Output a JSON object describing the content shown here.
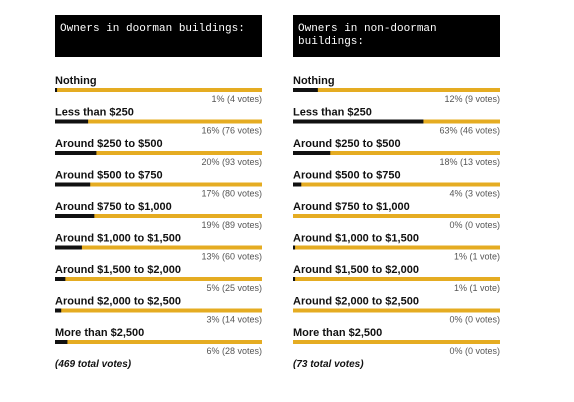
{
  "chart_data": [
    {
      "type": "bar",
      "orientation": "horizontal",
      "title": "Owners in doorman buildings:",
      "categories": [
        "Nothing",
        "Less than $250",
        "Around $250 to $500",
        "Around $500 to $750",
        "Around $750 to $1,000",
        "Around $1,000 to $1,500",
        "Around $1,500 to $2,000",
        "Around $2,000 to $2,500",
        "More than $2,500"
      ],
      "values": [
        1,
        16,
        20,
        17,
        19,
        13,
        5,
        3,
        6
      ],
      "value_labels": [
        "1% (4 votes)",
        "16% (76 votes)",
        "20% (93 votes)",
        "17% (80 votes)",
        "19% (89 votes)",
        "13% (60 votes)",
        "5% (25 votes)",
        "3% (14 votes)",
        "6% (28 votes)"
      ],
      "xlim": [
        0,
        100
      ],
      "color": "#111111",
      "track_color": "#e5ac22",
      "footnote": "(469 total votes)"
    },
    {
      "type": "bar",
      "orientation": "horizontal",
      "title": "Owners in non-doorman buildings:",
      "categories": [
        "Nothing",
        "Less than $250",
        "Around $250 to $500",
        "Around $500 to $750",
        "Around $750 to $1,000",
        "Around $1,000 to $1,500",
        "Around $1,500 to $2,000",
        "Around $2,000 to $2,500",
        "More than $2,500"
      ],
      "values": [
        12,
        63,
        18,
        4,
        0,
        1,
        1,
        0,
        0
      ],
      "value_labels": [
        "12% (9 votes)",
        "63% (46 votes)",
        "18% (13 votes)",
        "4% (3 votes)",
        "0% (0 votes)",
        "1% (1 vote)",
        "1% (1 vote)",
        "0% (0 votes)",
        "0% (0 votes)"
      ],
      "xlim": [
        0,
        100
      ],
      "color": "#111111",
      "track_color": "#e5ac22",
      "footnote": "(73 total votes)"
    }
  ]
}
